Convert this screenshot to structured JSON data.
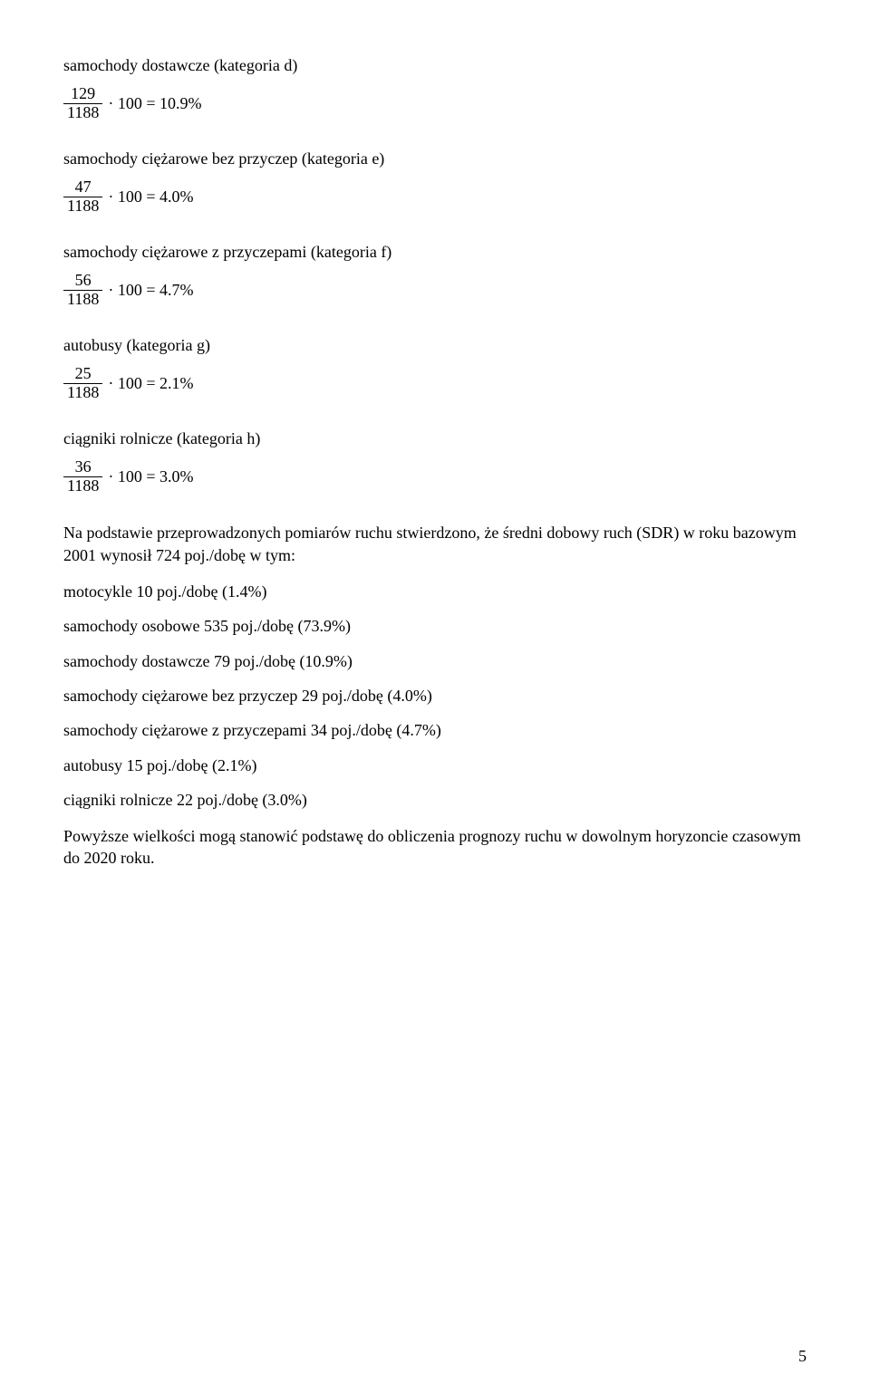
{
  "categories": [
    {
      "label": "samochody dostawcze (kategoria d)",
      "numerator": "129",
      "denominator": "1188",
      "rhs": "· 100 = 10.9%"
    },
    {
      "label": "samochody ciężarowe bez przyczep (kategoria e)",
      "numerator": "47",
      "denominator": "1188",
      "rhs": "· 100 = 4.0%"
    },
    {
      "label": "samochody ciężarowe z przyczepami (kategoria f)",
      "numerator": "56",
      "denominator": "1188",
      "rhs": "· 100 = 4.7%"
    },
    {
      "label": "autobusy (kategoria g)",
      "numerator": "25",
      "denominator": "1188",
      "rhs": "· 100 = 2.1%"
    },
    {
      "label": "ciągniki rolnicze (kategoria h)",
      "numerator": "36",
      "denominator": "1188",
      "rhs": "· 100 = 3.0%"
    }
  ],
  "intro": "Na podstawie przeprowadzonych pomiarów ruchu stwierdzono, że średni dobowy ruch (SDR) w roku bazowym 2001 wynosił 724 poj./dobę w tym:",
  "results": [
    "motocykle 10 poj./dobę (1.4%)",
    "samochody osobowe 535 poj./dobę (73.9%)",
    "samochody dostawcze 79 poj./dobę (10.9%)",
    "samochody ciężarowe bez przyczep 29 poj./dobę (4.0%)",
    "samochody ciężarowe z przyczepami 34 poj./dobę (4.7%)",
    "autobusy 15 poj./dobę (2.1%)",
    "ciągniki rolnicze 22 poj./dobę (3.0%)"
  ],
  "closing": "Powyższe wielkości mogą stanowić podstawę do obliczenia prognozy ruchu w dowolnym horyzoncie czasowym do 2020 roku.",
  "page_number": "5"
}
